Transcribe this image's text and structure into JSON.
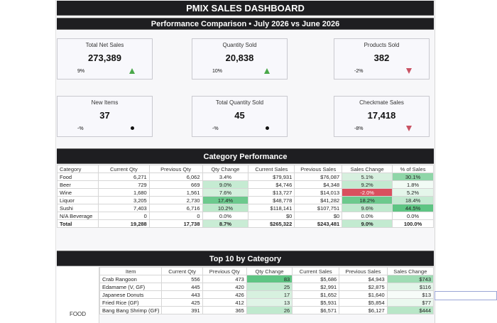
{
  "header": {
    "title": "PMIX SALES DASHBOARD",
    "subtitle": "Performance Comparison • July 2026 vs June 2026"
  },
  "kpis": [
    {
      "label": "Total Net Sales",
      "value": "273,389",
      "change": "9%",
      "trend": "up"
    },
    {
      "label": "Quantity Sold",
      "value": "20,838",
      "change": "10%",
      "trend": "up"
    },
    {
      "label": "Products Sold",
      "value": "382",
      "change": "-2%",
      "trend": "down"
    },
    {
      "label": "New Items",
      "value": "37",
      "change": "-%",
      "trend": "neutral"
    },
    {
      "label": "Total Quantity Sold",
      "value": "45",
      "change": "-%",
      "trend": "neutral"
    },
    {
      "label": "Checkmate Sales",
      "value": "17,418",
      "change": "-8%",
      "trend": "down"
    }
  ],
  "trend_colors": {
    "up": "#4aa84a",
    "down": "#c95263",
    "neutral": "#111111"
  },
  "category_performance": {
    "title": "Category Performance",
    "columns": [
      "Category",
      "Current Qty",
      "Previous Qty",
      "Qty Change",
      "Current Sales",
      "Previous Sales",
      "Sales Change",
      "% of Sales"
    ],
    "rows": [
      {
        "category": "Food",
        "cur_qty": "6,271",
        "prev_qty": "6,062",
        "qty_change": "3.4%",
        "cur_sales": "$79,931",
        "prev_sales": "$76,087",
        "sales_change": "5.1%",
        "pct": "30.1%",
        "qc_bg": "#ffffff",
        "sc_bg": "#d7f0df",
        "pct_bg": "#8fd6a8"
      },
      {
        "category": "Beer",
        "cur_qty": "729",
        "prev_qty": "669",
        "qty_change": "9.0%",
        "cur_sales": "$4,746",
        "prev_sales": "$4,348",
        "sales_change": "9.2%",
        "pct": "1.8%",
        "qc_bg": "#c5ebd2",
        "sc_bg": "#c2ead0",
        "pct_bg": "#f2fbf5"
      },
      {
        "category": "Wine",
        "cur_qty": "1,680",
        "prev_qty": "1,561",
        "qty_change": "7.6%",
        "cur_sales": "$13,727",
        "prev_sales": "$14,013",
        "sales_change": "-2.0%",
        "pct": "5.2%",
        "qc_bg": "#d3f0dc",
        "sc_bg": "#d9505e",
        "pct_bg": "#e4f6ea"
      },
      {
        "category": "Liquor",
        "cur_qty": "3,205",
        "prev_qty": "2,730",
        "qty_change": "17.4%",
        "cur_sales": "$48,778",
        "prev_sales": "$41,282",
        "sales_change": "18.2%",
        "pct": "18.4%",
        "qc_bg": "#6cc98d",
        "sc_bg": "#6cc98d",
        "pct_bg": "#c4ead1"
      },
      {
        "category": "Sushi",
        "cur_qty": "7,403",
        "prev_qty": "6,716",
        "qty_change": "10.2%",
        "cur_sales": "$118,141",
        "prev_sales": "$107,751",
        "sales_change": "9.6%",
        "pct": "44.5%",
        "qc_bg": "#bde8cb",
        "sc_bg": "#c0e9ce",
        "pct_bg": "#5ec583"
      },
      {
        "category": "N/A Beverage",
        "cur_qty": "0",
        "prev_qty": "0",
        "qty_change": "0.0%",
        "cur_sales": "$0",
        "prev_sales": "$0",
        "sales_change": "0.0%",
        "pct": "0.0%",
        "qc_bg": "#ffffff",
        "sc_bg": "#ffffff",
        "pct_bg": "#ffffff"
      }
    ],
    "total": {
      "category": "Total",
      "cur_qty": "19,288",
      "prev_qty": "17,738",
      "qty_change": "8.7%",
      "cur_sales": "$265,322",
      "prev_sales": "$243,481",
      "sales_change": "9.0%",
      "pct": "100.0%",
      "qc_bg": "#c9ecd5",
      "sc_bg": "#c2ead0",
      "pct_bg": "#ffffff"
    }
  },
  "top10": {
    "title": "Top 10 by Category",
    "group_label": "FOOD",
    "columns": [
      "Item",
      "Current Qty",
      "Previous Qty",
      "Qty Change",
      "Current Sales",
      "Previous Sales",
      "Sales Change"
    ],
    "rows": [
      {
        "item": "Crab Rangoon",
        "cur_qty": "556",
        "prev_qty": "473",
        "qty_change": "83",
        "cur_sales": "$5,686",
        "prev_sales": "$4,943",
        "sales_change": "$743",
        "qc_bg": "#5ec583",
        "sc_bg": "#9fdcb4"
      },
      {
        "item": "Edamame (V, GF)",
        "cur_qty": "445",
        "prev_qty": "420",
        "qty_change": "25",
        "cur_sales": "$2,991",
        "prev_sales": "$2,875",
        "sales_change": "$116",
        "qc_bg": "#c2ead0",
        "sc_bg": "#e3f5e9"
      },
      {
        "item": "Japanese Donuts",
        "cur_qty": "443",
        "prev_qty": "426",
        "qty_change": "17",
        "cur_sales": "$1,652",
        "prev_sales": "$1,640",
        "sales_change": "$13",
        "qc_bg": "#d7f1df",
        "sc_bg": "#f7fcf9"
      },
      {
        "item": "Fried Rice (GF)",
        "cur_qty": "425",
        "prev_qty": "412",
        "qty_change": "13",
        "cur_sales": "$5,931",
        "prev_sales": "$5,854",
        "sales_change": "$77",
        "qc_bg": "#e0f4e7",
        "sc_bg": "#ebf8ef"
      },
      {
        "item": "Bang Bang Shrimp (GF)",
        "cur_qty": "391",
        "prev_qty": "365",
        "qty_change": "26",
        "cur_sales": "$6,571",
        "prev_sales": "$6,127",
        "sales_change": "$444",
        "qc_bg": "#c0e9ce",
        "sc_bg": "#b8e6c7"
      }
    ]
  }
}
